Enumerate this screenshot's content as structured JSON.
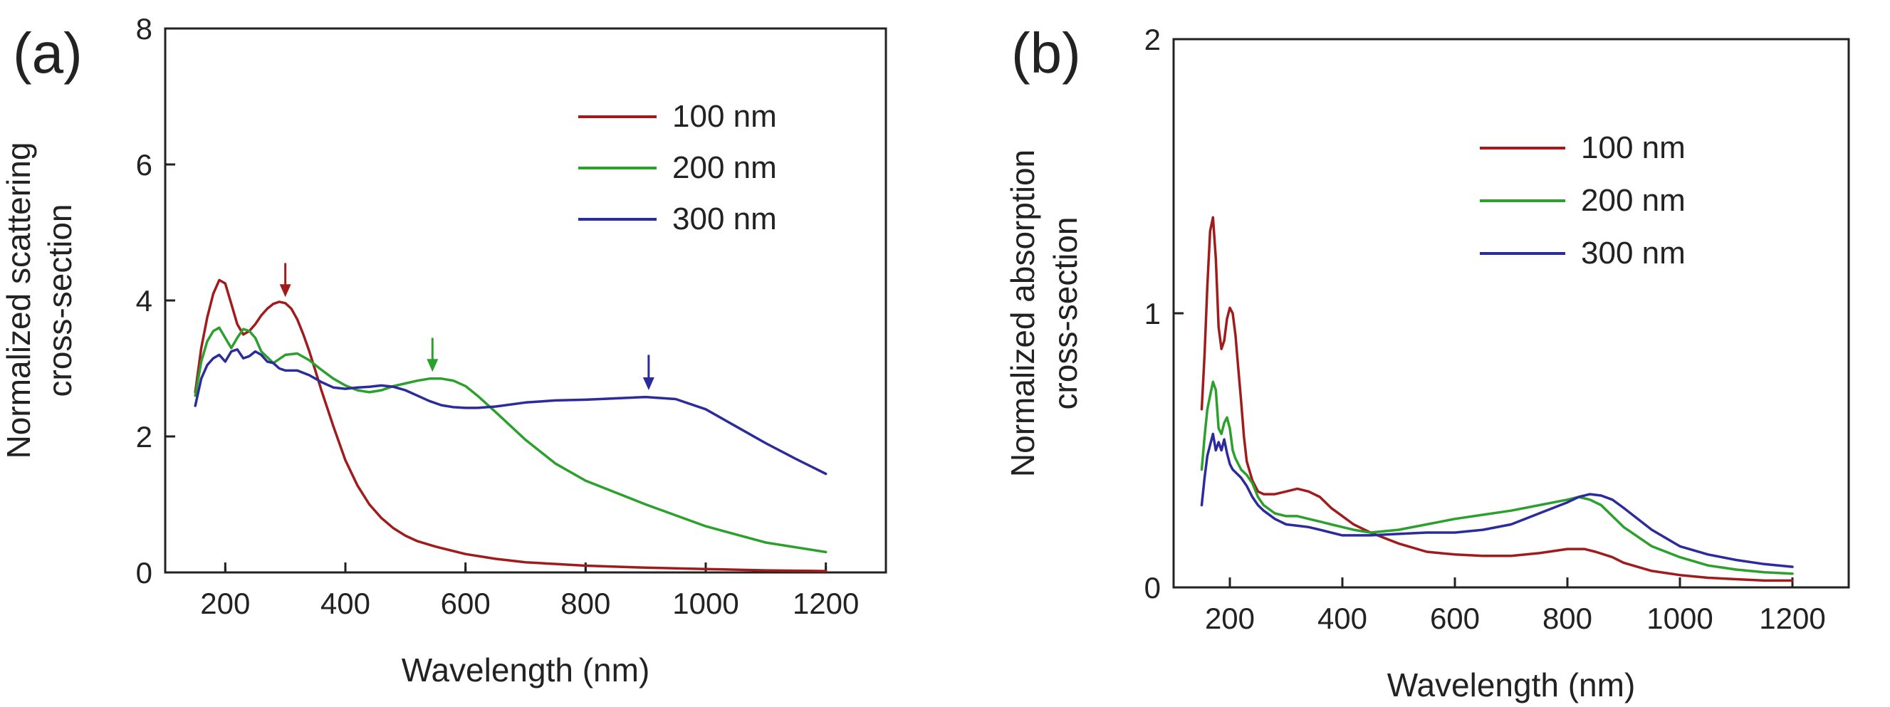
{
  "chart_data": [
    {
      "type": "line",
      "panel_label": "(a)",
      "xlabel": "Wavelength (nm)",
      "ylabel_lines": [
        "Normalized scattering",
        "cross-section"
      ],
      "xlim": [
        100,
        1300
      ],
      "ylim": [
        0,
        8
      ],
      "xticks": [
        200,
        400,
        600,
        800,
        1000,
        1200
      ],
      "yticks": [
        0,
        2,
        4,
        6,
        8
      ],
      "legend_placement": "top-right",
      "series": [
        {
          "name": "100 nm",
          "color": "#a01c1c",
          "x": [
            150,
            160,
            170,
            180,
            190,
            200,
            210,
            220,
            230,
            240,
            250,
            260,
            270,
            280,
            290,
            300,
            310,
            320,
            330,
            340,
            350,
            360,
            380,
            400,
            420,
            440,
            460,
            480,
            500,
            520,
            550,
            600,
            650,
            700,
            800,
            900,
            1000,
            1100,
            1200
          ],
          "y": [
            2.65,
            3.3,
            3.75,
            4.1,
            4.3,
            4.25,
            3.95,
            3.65,
            3.5,
            3.55,
            3.65,
            3.78,
            3.88,
            3.95,
            3.98,
            3.96,
            3.88,
            3.72,
            3.5,
            3.25,
            2.97,
            2.68,
            2.15,
            1.65,
            1.28,
            1.0,
            0.8,
            0.65,
            0.54,
            0.46,
            0.38,
            0.27,
            0.2,
            0.15,
            0.1,
            0.07,
            0.05,
            0.03,
            0.02
          ]
        },
        {
          "name": "200 nm",
          "color": "#2ca02c",
          "x": [
            150,
            160,
            170,
            180,
            190,
            200,
            210,
            220,
            230,
            240,
            250,
            260,
            280,
            300,
            320,
            340,
            360,
            380,
            400,
            420,
            440,
            460,
            480,
            500,
            520,
            540,
            560,
            580,
            600,
            620,
            650,
            700,
            750,
            800,
            900,
            1000,
            1100,
            1200
          ],
          "y": [
            2.6,
            3.1,
            3.4,
            3.55,
            3.6,
            3.45,
            3.3,
            3.45,
            3.58,
            3.55,
            3.45,
            3.25,
            3.08,
            3.2,
            3.22,
            3.12,
            2.98,
            2.85,
            2.75,
            2.68,
            2.65,
            2.68,
            2.74,
            2.78,
            2.82,
            2.85,
            2.85,
            2.82,
            2.74,
            2.6,
            2.36,
            1.95,
            1.6,
            1.35,
            1.0,
            0.68,
            0.44,
            0.3
          ]
        },
        {
          "name": "300 nm",
          "color": "#2b2b9c",
          "x": [
            150,
            160,
            170,
            180,
            190,
            200,
            210,
            220,
            230,
            240,
            250,
            260,
            270,
            280,
            290,
            300,
            320,
            340,
            360,
            380,
            400,
            420,
            440,
            460,
            480,
            500,
            520,
            540,
            560,
            580,
            600,
            620,
            650,
            700,
            750,
            800,
            850,
            900,
            950,
            1000,
            1050,
            1100,
            1150,
            1200
          ],
          "y": [
            2.45,
            2.85,
            3.05,
            3.15,
            3.2,
            3.1,
            3.25,
            3.28,
            3.15,
            3.18,
            3.25,
            3.2,
            3.1,
            3.08,
            3.0,
            2.97,
            2.97,
            2.9,
            2.8,
            2.72,
            2.7,
            2.72,
            2.73,
            2.75,
            2.73,
            2.68,
            2.6,
            2.52,
            2.46,
            2.43,
            2.42,
            2.42,
            2.44,
            2.5,
            2.53,
            2.54,
            2.56,
            2.58,
            2.55,
            2.4,
            2.15,
            1.9,
            1.67,
            1.45
          ]
        }
      ],
      "annotations": [
        {
          "type": "arrow",
          "x": 300,
          "y_tip": 4.05,
          "y_tail": 4.55,
          "color": "#a01c1c"
        },
        {
          "type": "arrow",
          "x": 545,
          "y_tip": 2.95,
          "y_tail": 3.45,
          "color": "#2ca02c"
        },
        {
          "type": "arrow",
          "x": 905,
          "y_tip": 2.68,
          "y_tail": 3.2,
          "color": "#2b2b9c"
        }
      ]
    },
    {
      "type": "line",
      "panel_label": "(b)",
      "xlabel": "Wavelength (nm)",
      "ylabel_lines": [
        "Normalized absorption",
        "cross-section"
      ],
      "xlim": [
        100,
        1300
      ],
      "ylim": [
        0,
        2
      ],
      "xticks": [
        200,
        400,
        600,
        800,
        1000,
        1200
      ],
      "yticks": [
        0,
        1,
        2
      ],
      "legend_placement": "top-right",
      "series": [
        {
          "name": "100 nm",
          "color": "#a01c1c",
          "x": [
            150,
            155,
            160,
            165,
            170,
            175,
            180,
            185,
            190,
            195,
            200,
            205,
            210,
            215,
            220,
            225,
            230,
            240,
            250,
            260,
            280,
            300,
            320,
            340,
            360,
            380,
            400,
            420,
            450,
            500,
            550,
            600,
            650,
            700,
            750,
            800,
            830,
            850,
            880,
            900,
            950,
            1000,
            1050,
            1100,
            1150,
            1200
          ],
          "y": [
            0.65,
            0.85,
            1.1,
            1.3,
            1.35,
            1.2,
            0.95,
            0.87,
            0.9,
            0.98,
            1.02,
            1.0,
            0.92,
            0.8,
            0.68,
            0.55,
            0.46,
            0.39,
            0.35,
            0.34,
            0.34,
            0.35,
            0.36,
            0.35,
            0.33,
            0.29,
            0.26,
            0.23,
            0.2,
            0.16,
            0.13,
            0.12,
            0.115,
            0.115,
            0.125,
            0.14,
            0.14,
            0.13,
            0.11,
            0.09,
            0.06,
            0.045,
            0.035,
            0.03,
            0.025,
            0.025
          ]
        },
        {
          "name": "200 nm",
          "color": "#2ca02c",
          "x": [
            150,
            155,
            160,
            165,
            170,
            175,
            180,
            185,
            190,
            195,
            200,
            205,
            210,
            220,
            230,
            240,
            250,
            260,
            280,
            300,
            320,
            340,
            360,
            380,
            400,
            420,
            450,
            500,
            550,
            600,
            650,
            700,
            750,
            800,
            820,
            840,
            860,
            880,
            900,
            950,
            1000,
            1050,
            1100,
            1150,
            1200
          ],
          "y": [
            0.43,
            0.55,
            0.65,
            0.7,
            0.75,
            0.72,
            0.58,
            0.56,
            0.6,
            0.62,
            0.58,
            0.5,
            0.47,
            0.43,
            0.41,
            0.38,
            0.33,
            0.3,
            0.27,
            0.26,
            0.26,
            0.25,
            0.24,
            0.23,
            0.22,
            0.21,
            0.2,
            0.21,
            0.23,
            0.25,
            0.265,
            0.28,
            0.3,
            0.32,
            0.33,
            0.32,
            0.3,
            0.26,
            0.22,
            0.15,
            0.11,
            0.08,
            0.065,
            0.055,
            0.05
          ]
        },
        {
          "name": "300 nm",
          "color": "#2b2b9c",
          "x": [
            150,
            155,
            160,
            165,
            170,
            175,
            180,
            185,
            190,
            195,
            200,
            205,
            210,
            220,
            230,
            240,
            250,
            260,
            280,
            300,
            320,
            340,
            360,
            380,
            400,
            420,
            450,
            500,
            550,
            600,
            650,
            700,
            750,
            800,
            820,
            840,
            860,
            880,
            900,
            950,
            1000,
            1050,
            1100,
            1150,
            1200
          ],
          "y": [
            0.3,
            0.4,
            0.48,
            0.52,
            0.56,
            0.5,
            0.53,
            0.5,
            0.54,
            0.49,
            0.45,
            0.43,
            0.42,
            0.4,
            0.37,
            0.33,
            0.3,
            0.28,
            0.25,
            0.23,
            0.225,
            0.22,
            0.21,
            0.2,
            0.19,
            0.19,
            0.19,
            0.195,
            0.2,
            0.2,
            0.21,
            0.23,
            0.27,
            0.31,
            0.33,
            0.34,
            0.335,
            0.32,
            0.29,
            0.21,
            0.15,
            0.12,
            0.1,
            0.085,
            0.075
          ]
        }
      ],
      "annotations": []
    }
  ]
}
